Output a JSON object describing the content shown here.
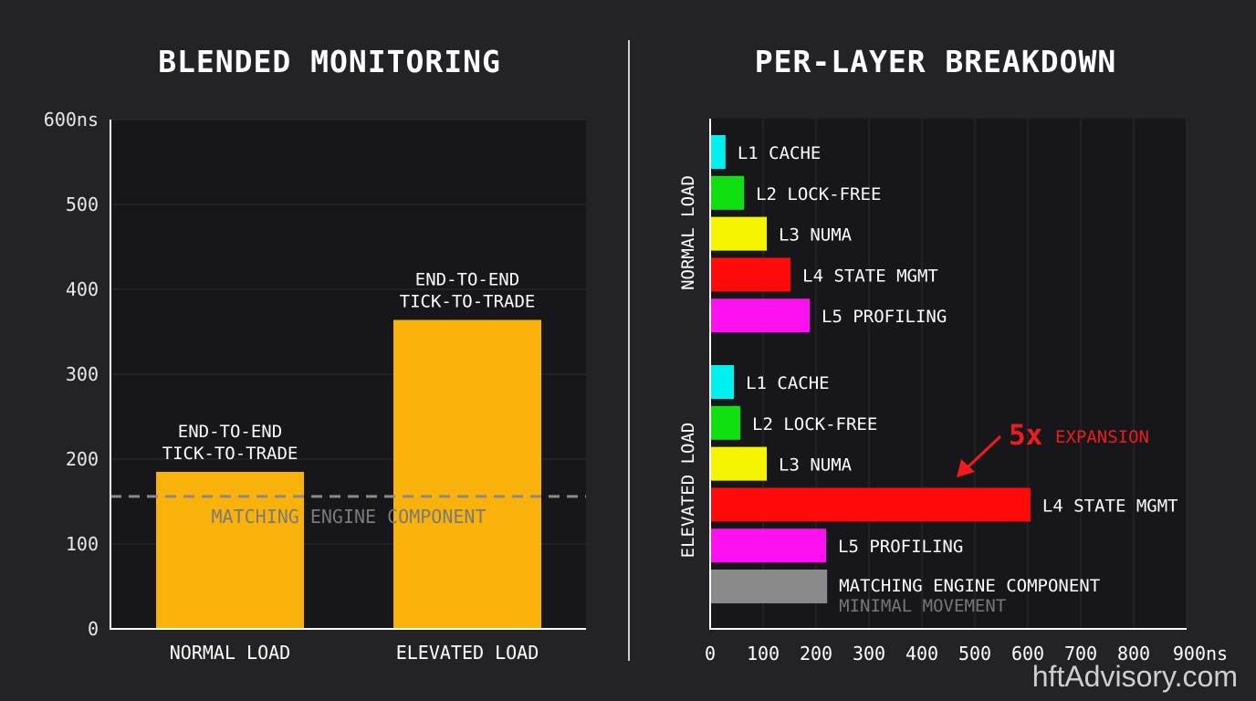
{
  "watermark": "hftAdvisory.com",
  "chart_data": [
    {
      "type": "bar",
      "title": "BLENDED MONITORING",
      "categories": [
        "NORMAL LOAD",
        "ELEVATED LOAD"
      ],
      "values": [
        185,
        364
      ],
      "bar_labels": [
        [
          "END-TO-END",
          "TICK-TO-TRADE"
        ],
        [
          "END-TO-END",
          "TICK-TO-TRADE"
        ]
      ],
      "ylim": [
        0,
        600
      ],
      "yticks": [
        "0",
        "100",
        "200",
        "300",
        "400",
        "500",
        "600ns"
      ],
      "reference_line": {
        "value": 156,
        "label": "MATCHING ENGINE COMPONENT",
        "style": "dashed"
      },
      "bar_color": "#f9b20a",
      "grid": true
    },
    {
      "type": "bar",
      "orientation": "horizontal",
      "title": "PER-LAYER BREAKDOWN",
      "xlim": [
        0,
        900
      ],
      "xticks": [
        "0",
        "100",
        "200",
        "300",
        "400",
        "500",
        "600",
        "700",
        "800",
        "900ns"
      ],
      "grid": true,
      "groups": [
        {
          "name": "NORMAL LOAD",
          "bars": [
            {
              "label": "L1 CACHE",
              "value": 29,
              "color": "#00f0f0"
            },
            {
              "label": "L2 LOCK-FREE",
              "value": 64,
              "color": "#10e010"
            },
            {
              "label": "L3 NUMA",
              "value": 107,
              "color": "#f5f500"
            },
            {
              "label": "L4 STATE MGMT",
              "value": 152,
              "color": "#ff0a0a"
            },
            {
              "label": "L5 PROFILING",
              "value": 188,
              "color": "#ff10f0"
            }
          ]
        },
        {
          "name": "ELEVATED LOAD",
          "bars": [
            {
              "label": "L1 CACHE",
              "value": 45,
              "color": "#00f0f0"
            },
            {
              "label": "L2 LOCK-FREE",
              "value": 57,
              "color": "#10e010"
            },
            {
              "label": "L3 NUMA",
              "value": 107,
              "color": "#f5f500"
            },
            {
              "label": "L4 STATE MGMT",
              "value": 605,
              "color": "#ff0a0a"
            },
            {
              "label": "L5 PROFILING",
              "value": 219,
              "color": "#ff10f0"
            },
            {
              "label": "MATCHING ENGINE COMPONENT",
              "sublabel": "MINIMAL MOVEMENT",
              "value": 221,
              "color": "#8a8a8a"
            }
          ]
        }
      ],
      "annotation": {
        "big": "5x",
        "text": "EXPANSION",
        "color": "#ee1c1c",
        "target": "ELEVATED LOAD / L4 STATE MGMT"
      }
    }
  ]
}
